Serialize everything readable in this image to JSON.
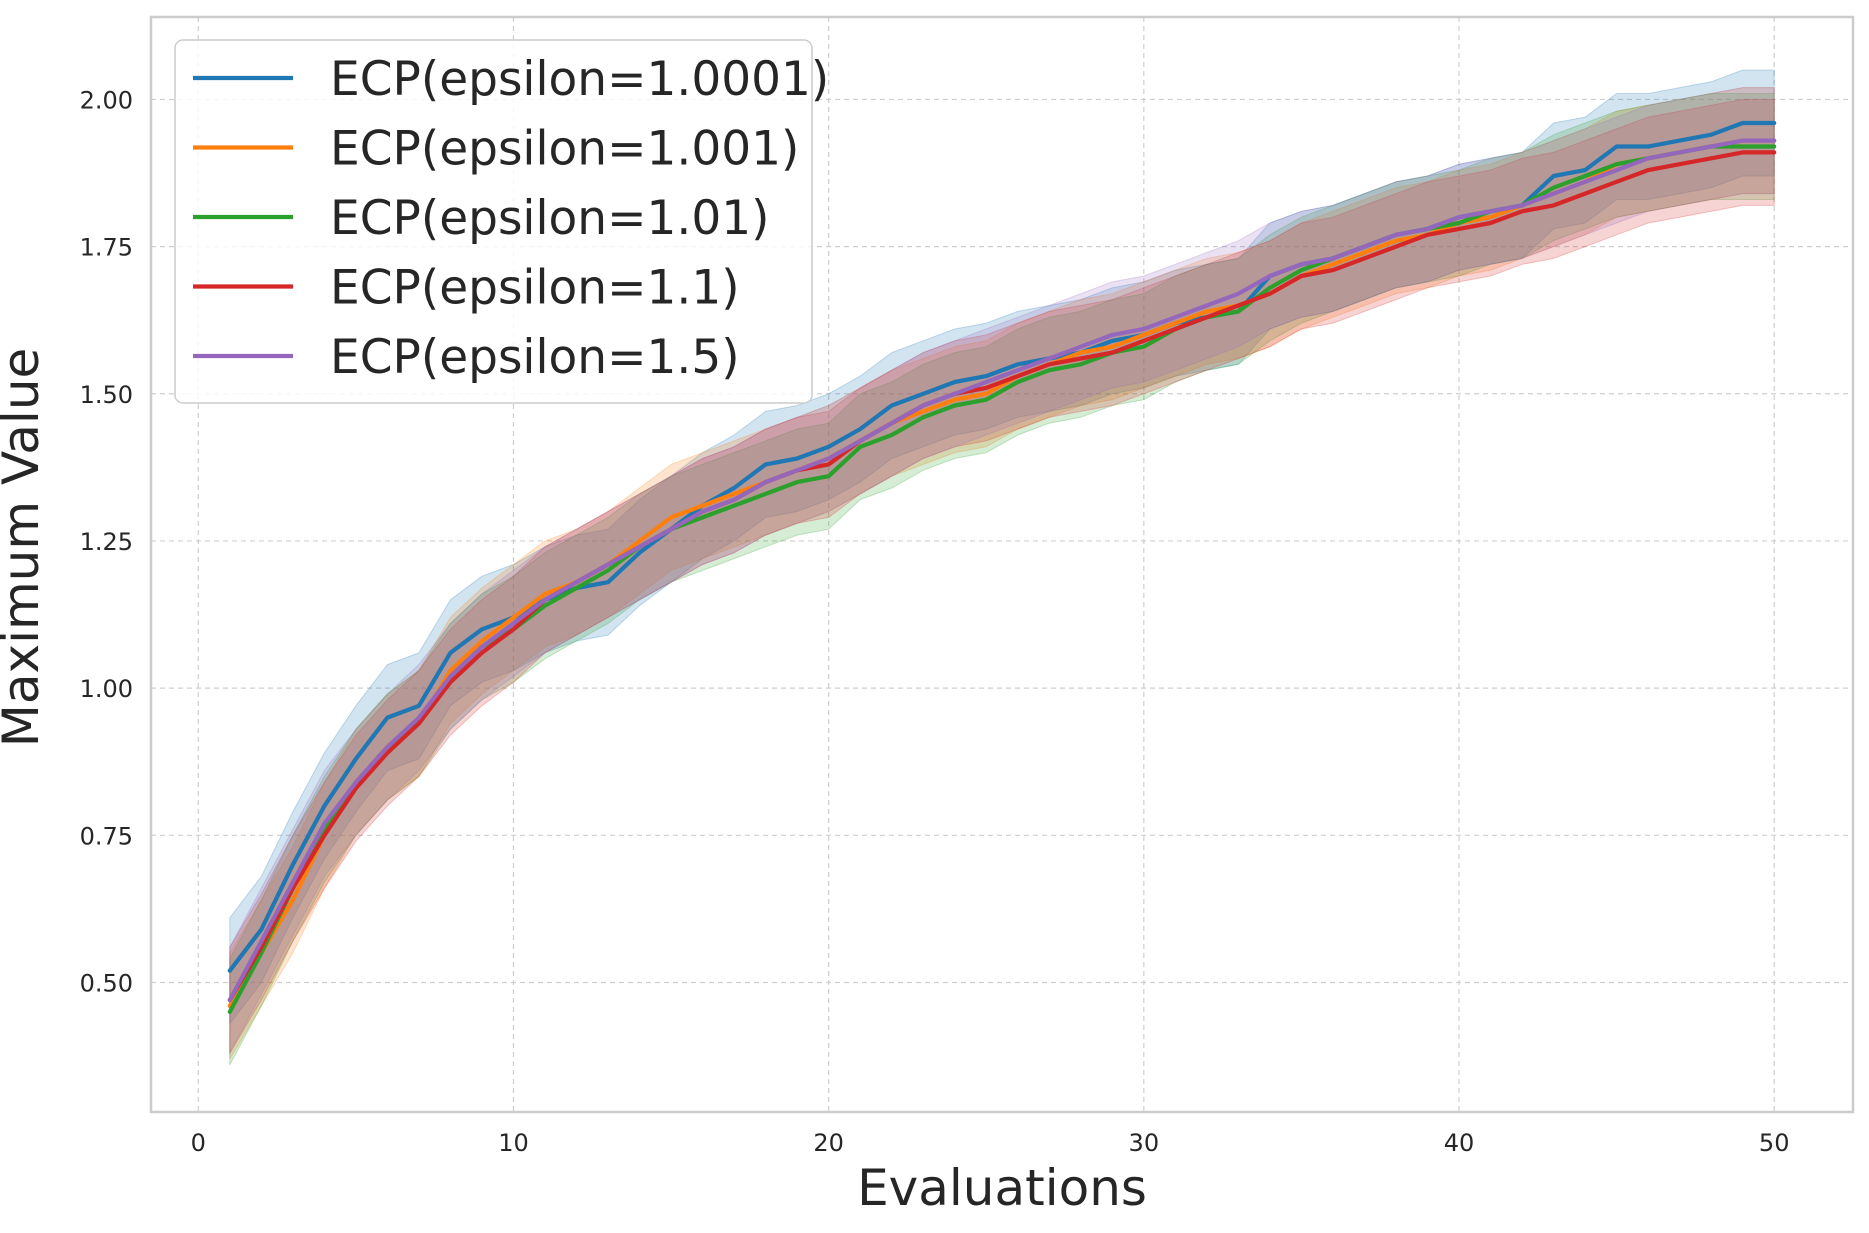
{
  "chart_data": {
    "type": "line",
    "title": "",
    "xlabel": "Evaluations",
    "ylabel": "Maximum Value",
    "xlim": [
      -1.5,
      52.5
    ],
    "ylim": [
      0.28,
      2.14
    ],
    "xticks": [
      0,
      10,
      20,
      30,
      40,
      50
    ],
    "yticks": [
      0.5,
      0.75,
      1.0,
      1.25,
      1.5,
      1.75,
      2.0
    ],
    "xtick_labels": [
      "0",
      "10",
      "20",
      "30",
      "40",
      "50"
    ],
    "ytick_labels": [
      "0.50",
      "0.75",
      "1.00",
      "1.25",
      "1.50",
      "1.75",
      "2.00"
    ],
    "grid": true,
    "legend_position": "top-left",
    "band_halfwidth": 0.09,
    "x": [
      1,
      2,
      3,
      4,
      5,
      6,
      7,
      8,
      9,
      10,
      11,
      12,
      13,
      14,
      15,
      16,
      17,
      18,
      19,
      20,
      21,
      22,
      23,
      24,
      25,
      26,
      27,
      28,
      29,
      30,
      31,
      32,
      33,
      34,
      35,
      36,
      37,
      38,
      39,
      40,
      41,
      42,
      43,
      44,
      45,
      46,
      47,
      48,
      49,
      50
    ],
    "series": [
      {
        "name": "ECP(epsilon=1.0001)",
        "color": "#1f77b4",
        "values": [
          0.52,
          0.59,
          0.7,
          0.8,
          0.88,
          0.95,
          0.97,
          1.06,
          1.1,
          1.12,
          1.15,
          1.17,
          1.18,
          1.23,
          1.27,
          1.31,
          1.34,
          1.38,
          1.39,
          1.41,
          1.44,
          1.48,
          1.5,
          1.52,
          1.53,
          1.55,
          1.56,
          1.57,
          1.59,
          1.6,
          1.62,
          1.63,
          1.64,
          1.7,
          1.72,
          1.73,
          1.75,
          1.77,
          1.78,
          1.8,
          1.81,
          1.82,
          1.87,
          1.88,
          1.92,
          1.92,
          1.93,
          1.94,
          1.96,
          1.96
        ]
      },
      {
        "name": "ECP(epsilon=1.001)",
        "color": "#ff7f0e",
        "values": [
          0.46,
          0.55,
          0.64,
          0.75,
          0.84,
          0.9,
          0.94,
          1.03,
          1.08,
          1.12,
          1.16,
          1.18,
          1.21,
          1.25,
          1.29,
          1.31,
          1.33,
          1.35,
          1.37,
          1.39,
          1.42,
          1.45,
          1.47,
          1.49,
          1.5,
          1.53,
          1.55,
          1.57,
          1.58,
          1.6,
          1.62,
          1.64,
          1.65,
          1.67,
          1.7,
          1.72,
          1.74,
          1.76,
          1.77,
          1.79,
          1.8,
          1.82,
          1.84,
          1.86,
          1.89,
          1.9,
          1.91,
          1.92,
          1.93,
          1.93
        ]
      },
      {
        "name": "ECP(epsilon=1.01)",
        "color": "#2ca02c",
        "values": [
          0.45,
          0.55,
          0.66,
          0.76,
          0.84,
          0.9,
          0.94,
          1.02,
          1.07,
          1.1,
          1.14,
          1.17,
          1.2,
          1.24,
          1.27,
          1.29,
          1.31,
          1.33,
          1.35,
          1.36,
          1.41,
          1.43,
          1.46,
          1.48,
          1.49,
          1.52,
          1.54,
          1.55,
          1.57,
          1.58,
          1.61,
          1.63,
          1.64,
          1.68,
          1.71,
          1.73,
          1.75,
          1.77,
          1.78,
          1.79,
          1.81,
          1.82,
          1.85,
          1.87,
          1.89,
          1.9,
          1.91,
          1.92,
          1.92,
          1.92
        ]
      },
      {
        "name": "ECP(epsilon=1.1)",
        "color": "#d62728",
        "values": [
          0.47,
          0.56,
          0.66,
          0.75,
          0.83,
          0.89,
          0.94,
          1.01,
          1.06,
          1.1,
          1.15,
          1.18,
          1.21,
          1.24,
          1.27,
          1.3,
          1.32,
          1.35,
          1.37,
          1.38,
          1.42,
          1.45,
          1.48,
          1.5,
          1.51,
          1.53,
          1.55,
          1.56,
          1.57,
          1.59,
          1.61,
          1.63,
          1.65,
          1.67,
          1.7,
          1.71,
          1.73,
          1.75,
          1.77,
          1.78,
          1.79,
          1.81,
          1.82,
          1.84,
          1.86,
          1.88,
          1.89,
          1.9,
          1.91,
          1.91
        ]
      },
      {
        "name": "ECP(epsilon=1.5)",
        "color": "#9467bd",
        "values": [
          0.47,
          0.57,
          0.67,
          0.77,
          0.84,
          0.9,
          0.95,
          1.02,
          1.07,
          1.11,
          1.15,
          1.18,
          1.21,
          1.24,
          1.27,
          1.3,
          1.32,
          1.35,
          1.37,
          1.39,
          1.42,
          1.45,
          1.48,
          1.5,
          1.52,
          1.54,
          1.56,
          1.58,
          1.6,
          1.61,
          1.63,
          1.65,
          1.67,
          1.7,
          1.72,
          1.73,
          1.75,
          1.77,
          1.78,
          1.8,
          1.81,
          1.82,
          1.84,
          1.86,
          1.88,
          1.9,
          1.91,
          1.92,
          1.93,
          1.93
        ]
      }
    ]
  }
}
